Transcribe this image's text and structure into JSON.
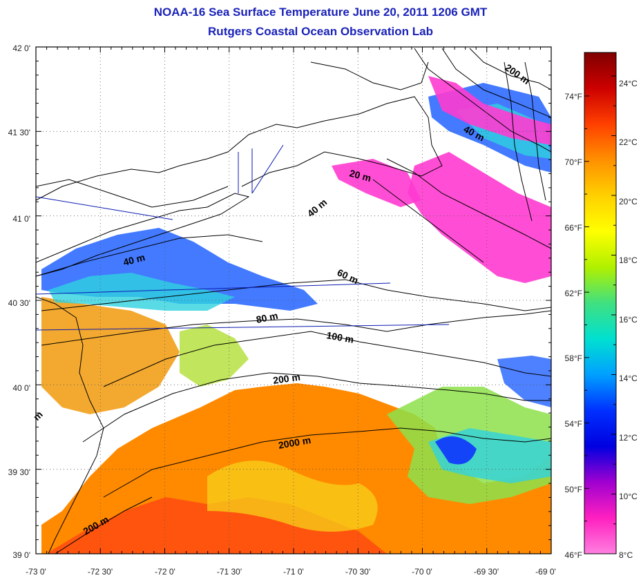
{
  "title": "NOAA-16 Sea Surface Temperature June 20, 2011 1206 GMT",
  "subtitle": "Rutgers Coastal Ocean Observation Lab",
  "lat_ticks": [
    "42 0'",
    "41 30'",
    "41 0'",
    "40 30'",
    "40 0'",
    "39 30'",
    "39 0'"
  ],
  "lon_ticks": [
    "-73 0'",
    "-72 30'",
    "-72 0'",
    "-71 30'",
    "-71 0'",
    "-70 30'",
    "-70 0'",
    "-69 30'",
    "-69 0'"
  ],
  "depth_labels": [
    "200 m",
    "40 m",
    "20 m",
    "40 m",
    "40 m",
    "60 m",
    "80 m",
    "100 m",
    "200 m",
    "2000 m",
    "200 m",
    "m"
  ],
  "colorbar": {
    "celsius": [
      "24°C",
      "22°C",
      "20°C",
      "18°C",
      "16°C",
      "14°C",
      "12°C",
      "10°C",
      "8°C"
    ],
    "fahrenheit": [
      "74°F",
      "70°F",
      "66°F",
      "62°F",
      "58°F",
      "54°F",
      "50°F",
      "46°F"
    ],
    "colors": [
      "#800000",
      "#cc0000",
      "#ff4000",
      "#ff9000",
      "#ffd000",
      "#ffff00",
      "#b0f000",
      "#40e080",
      "#00e0d0",
      "#00a0ff",
      "#0030ff",
      "#0000e0",
      "#a000d0",
      "#ff20c0",
      "#ff80e0"
    ]
  },
  "sst_colors": {
    "warm": "#ff8a00",
    "hot": "#ff4a10",
    "yellow": "#f7d21a",
    "green": "#8de04a",
    "cyan": "#2fd2e0",
    "blue": "#2f6bff",
    "cold": "#ff3bd0",
    "land": "#ffffff"
  }
}
